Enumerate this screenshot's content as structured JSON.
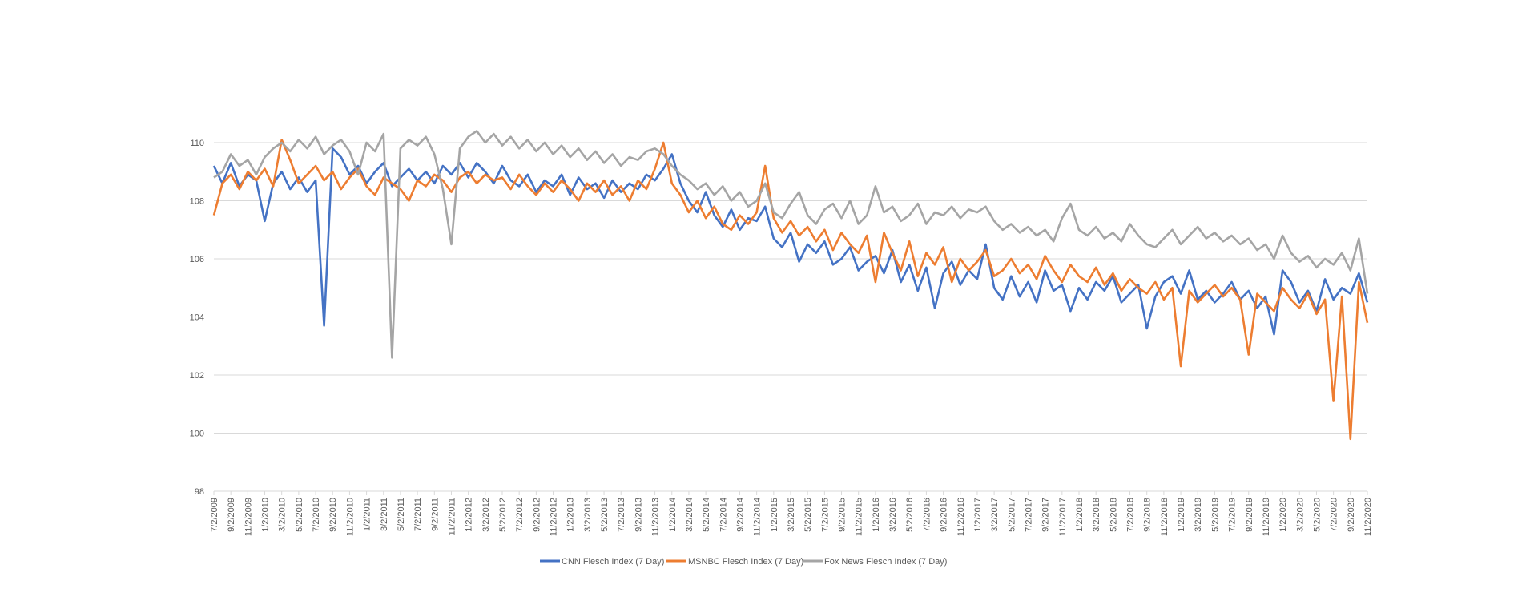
{
  "chart_data": {
    "type": "line",
    "title": "",
    "xlabel": "",
    "ylabel": "",
    "ylim": [
      98,
      110
    ],
    "yticks": [
      98,
      100,
      102,
      104,
      106,
      108,
      110
    ],
    "grid": true,
    "legend_position": "bottom",
    "x_start": "7/2/2009",
    "x_end": "11/2/2020",
    "x_resolution": "monthly",
    "tick_labels": [
      "7/2/2009",
      "9/2/2009",
      "11/2/2009",
      "1/2/2010",
      "3/2/2010",
      "5/2/2010",
      "7/2/2010",
      "9/2/2010",
      "11/2/2010",
      "1/2/2011",
      "3/2/2011",
      "5/2/2011",
      "7/2/2011",
      "9/2/2011",
      "11/2/2011",
      "1/2/2012",
      "3/2/2012",
      "5/2/2012",
      "7/2/2012",
      "9/2/2012",
      "11/2/2012",
      "1/2/2013",
      "3/2/2013",
      "5/2/2013",
      "7/2/2013",
      "9/2/2013",
      "11/2/2013",
      "1/2/2014",
      "3/2/2014",
      "5/2/2014",
      "7/2/2014",
      "9/2/2014",
      "11/2/2014",
      "1/2/2015",
      "3/2/2015",
      "5/2/2015",
      "7/2/2015",
      "9/2/2015",
      "11/2/2015",
      "1/2/2016",
      "3/2/2016",
      "5/2/2016",
      "7/2/2016",
      "9/2/2016",
      "11/2/2016",
      "1/2/2017",
      "3/2/2017",
      "5/2/2017",
      "7/2/2017",
      "9/2/2017",
      "11/2/2017",
      "1/2/2018",
      "3/2/2018",
      "5/2/2018",
      "7/2/2018",
      "9/2/2018",
      "11/2/2018",
      "1/2/2019",
      "3/2/2019",
      "5/2/2019",
      "7/2/2019",
      "9/2/2019",
      "11/2/2019",
      "1/2/2020",
      "3/2/2020",
      "5/2/2020",
      "7/2/2020",
      "9/2/2020",
      "11/2/2020"
    ],
    "series": [
      {
        "name": "CNN Flesch Index (7 Day)",
        "color": "#4472C4",
        "values": [
          109.2,
          108.6,
          109.3,
          108.5,
          108.9,
          108.7,
          107.3,
          108.6,
          109.0,
          108.4,
          108.8,
          108.3,
          108.7,
          103.7,
          109.8,
          109.5,
          108.9,
          109.2,
          108.6,
          109.0,
          109.3,
          108.5,
          108.8,
          109.1,
          108.7,
          109.0,
          108.6,
          109.2,
          108.9,
          109.3,
          108.8,
          109.3,
          109.0,
          108.6,
          109.2,
          108.7,
          108.5,
          108.9,
          108.3,
          108.7,
          108.5,
          108.9,
          108.2,
          108.8,
          108.4,
          108.6,
          108.1,
          108.7,
          108.3,
          108.6,
          108.4,
          108.9,
          108.7,
          109.1,
          109.6,
          108.6,
          108.0,
          107.6,
          108.3,
          107.5,
          107.1,
          107.7,
          107.0,
          107.4,
          107.3,
          107.8,
          106.7,
          106.4,
          106.9,
          105.9,
          106.5,
          106.2,
          106.6,
          105.8,
          106.0,
          106.4,
          105.6,
          105.9,
          106.1,
          105.5,
          106.3,
          105.2,
          105.8,
          104.9,
          105.7,
          104.3,
          105.5,
          105.9,
          105.1,
          105.6,
          105.3,
          106.5,
          105.0,
          104.6,
          105.4,
          104.7,
          105.2,
          104.5,
          105.6,
          104.9,
          105.1,
          104.2,
          105.0,
          104.6,
          105.2,
          104.9,
          105.4,
          104.5,
          104.8,
          105.1,
          103.6,
          104.7,
          105.2,
          105.4,
          104.8,
          105.6,
          104.6,
          104.9,
          104.5,
          104.8,
          105.2,
          104.6,
          104.9,
          104.3,
          104.7,
          103.4,
          105.6,
          105.2,
          104.5,
          104.9,
          104.2,
          105.3,
          104.6,
          105.0,
          104.8,
          105.5,
          104.5
        ]
      },
      {
        "name": "MSNBC Flesch Index (7 Day)",
        "color": "#ED7D31",
        "values": [
          107.5,
          108.6,
          108.9,
          108.4,
          109.0,
          108.7,
          109.1,
          108.5,
          110.1,
          109.4,
          108.6,
          108.9,
          109.2,
          108.7,
          109.0,
          108.4,
          108.8,
          109.1,
          108.5,
          108.2,
          108.8,
          108.6,
          108.4,
          108.0,
          108.7,
          108.5,
          108.9,
          108.7,
          108.3,
          108.8,
          109.0,
          108.6,
          108.9,
          108.7,
          108.8,
          108.4,
          108.9,
          108.5,
          108.2,
          108.6,
          108.3,
          108.7,
          108.4,
          108.0,
          108.6,
          108.3,
          108.7,
          108.2,
          108.5,
          108.0,
          108.7,
          108.4,
          109.1,
          110.0,
          108.6,
          108.2,
          107.6,
          108.0,
          107.4,
          107.8,
          107.2,
          107.0,
          107.5,
          107.2,
          107.6,
          109.2,
          107.4,
          106.9,
          107.3,
          106.8,
          107.1,
          106.6,
          107.0,
          106.3,
          106.9,
          106.5,
          106.2,
          106.8,
          105.2,
          106.9,
          106.2,
          105.6,
          106.6,
          105.4,
          106.2,
          105.8,
          106.4,
          105.2,
          106.0,
          105.6,
          105.9,
          106.3,
          105.4,
          105.6,
          106.0,
          105.5,
          105.8,
          105.3,
          106.1,
          105.6,
          105.2,
          105.8,
          105.4,
          105.2,
          105.7,
          105.1,
          105.5,
          104.9,
          105.3,
          105.0,
          104.8,
          105.2,
          104.6,
          105.0,
          102.3,
          104.9,
          104.5,
          104.8,
          105.1,
          104.7,
          105.0,
          104.6,
          102.7,
          104.8,
          104.5,
          104.2,
          105.0,
          104.6,
          104.3,
          104.8,
          104.1,
          104.6,
          101.1,
          104.7,
          99.8,
          105.2,
          103.8
        ]
      },
      {
        "name": "Fox News Flesch Index (7 Day)",
        "color": "#A5A5A5",
        "values": [
          108.8,
          109.0,
          109.6,
          109.2,
          109.4,
          108.9,
          109.5,
          109.8,
          110.0,
          109.7,
          110.1,
          109.8,
          110.2,
          109.6,
          109.9,
          110.1,
          109.7,
          108.9,
          110.0,
          109.7,
          110.3,
          102.6,
          109.8,
          110.1,
          109.9,
          110.2,
          109.6,
          108.4,
          106.5,
          109.8,
          110.2,
          110.4,
          110.0,
          110.3,
          109.9,
          110.2,
          109.8,
          110.1,
          109.7,
          110.0,
          109.6,
          109.9,
          109.5,
          109.8,
          109.4,
          109.7,
          109.3,
          109.6,
          109.2,
          109.5,
          109.4,
          109.7,
          109.8,
          109.6,
          109.2,
          108.9,
          108.7,
          108.4,
          108.6,
          108.2,
          108.5,
          108.0,
          108.3,
          107.8,
          108.0,
          108.6,
          107.6,
          107.4,
          107.9,
          108.3,
          107.5,
          107.2,
          107.7,
          107.9,
          107.4,
          108.0,
          107.2,
          107.5,
          108.5,
          107.6,
          107.8,
          107.3,
          107.5,
          107.9,
          107.2,
          107.6,
          107.5,
          107.8,
          107.4,
          107.7,
          107.6,
          107.8,
          107.3,
          107.0,
          107.2,
          106.9,
          107.1,
          106.8,
          107.0,
          106.6,
          107.4,
          107.9,
          107.0,
          106.8,
          107.1,
          106.7,
          106.9,
          106.6,
          107.2,
          106.8,
          106.5,
          106.4,
          106.7,
          107.0,
          106.5,
          106.8,
          107.1,
          106.7,
          106.9,
          106.6,
          106.8,
          106.5,
          106.7,
          106.3,
          106.5,
          106.0,
          106.8,
          106.2,
          105.9,
          106.1,
          105.7,
          106.0,
          105.8,
          106.2,
          105.6,
          106.7,
          104.8
        ]
      }
    ]
  }
}
